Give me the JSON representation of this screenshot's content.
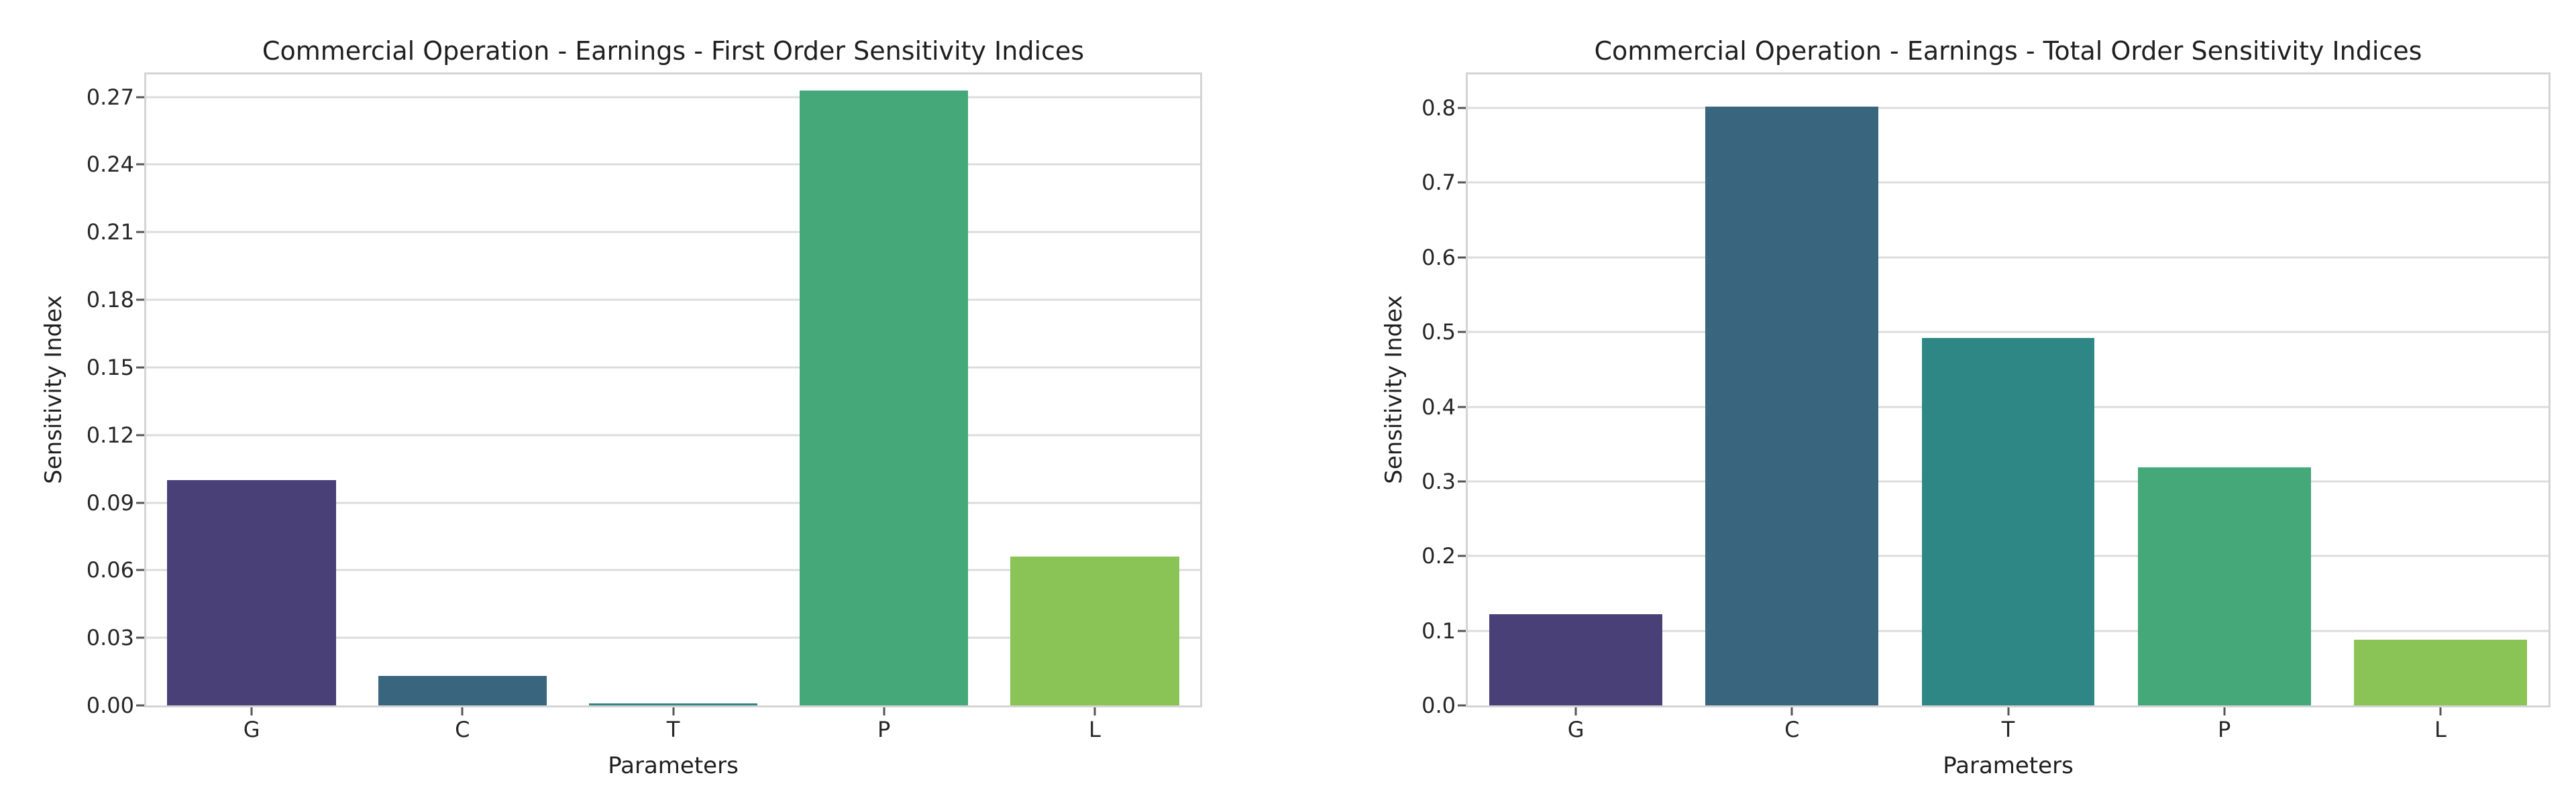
{
  "figure": {
    "background": "#ffffff",
    "text_color": "#1f1f1f",
    "grid_color": "#dcdcdc",
    "spine_color": "#d4d4d4",
    "tick_color": "#555555"
  },
  "chart_data": [
    {
      "type": "bar",
      "title": "Commercial Operation - Earnings - First Order Sensitivity Indices",
      "xlabel": "Parameters",
      "ylabel": "Sensitivity Index",
      "categories": [
        "G",
        "C",
        "T",
        "P",
        "L"
      ],
      "values": [
        0.1,
        0.013,
        0.001,
        0.273,
        0.066
      ],
      "bar_colors": [
        "#494077",
        "#3a657f",
        "#2e8784",
        "#44a878",
        "#8ac456"
      ],
      "ylim": [
        0,
        0.28
      ],
      "yticks": [
        0.0,
        0.03,
        0.06,
        0.09,
        0.12,
        0.15,
        0.18,
        0.21,
        0.24,
        0.27
      ],
      "ytick_labels": [
        "0.00",
        "0.03",
        "0.06",
        "0.09",
        "0.12",
        "0.15",
        "0.18",
        "0.21",
        "0.24",
        "0.27"
      ],
      "grid": true,
      "legend": "none"
    },
    {
      "type": "bar",
      "title": "Commercial Operation - Earnings - Total Order Sensitivity Indices",
      "xlabel": "Parameters",
      "ylabel": "Sensitivity Index",
      "categories": [
        "G",
        "C",
        "T",
        "P",
        "L"
      ],
      "values": [
        0.122,
        0.802,
        0.492,
        0.319,
        0.088
      ],
      "bar_colors": [
        "#494077",
        "#3a657f",
        "#2e8784",
        "#44a878",
        "#8ac456"
      ],
      "ylim": [
        0,
        0.845
      ],
      "yticks": [
        0.0,
        0.1,
        0.2,
        0.3,
        0.4,
        0.5,
        0.6,
        0.7,
        0.8
      ],
      "ytick_labels": [
        "0.0",
        "0.1",
        "0.2",
        "0.3",
        "0.4",
        "0.5",
        "0.6",
        "0.7",
        "0.8"
      ],
      "grid": true,
      "legend": "none"
    }
  ]
}
